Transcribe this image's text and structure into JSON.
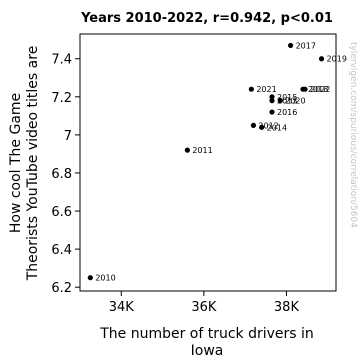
{
  "chart_data": {
    "type": "scatter",
    "title": "Years 2010-2022, r=0.942, p<0.01",
    "xlabel": "The number of truck drivers in Iowa",
    "ylabel": "How cool The Game Theorists YouTube video titles are",
    "xlim": [
      33000,
      39200
    ],
    "ylim": [
      6.18,
      7.53
    ],
    "xticks": [
      {
        "value": 34000,
        "label": "34K"
      },
      {
        "value": 36000,
        "label": "36K"
      },
      {
        "value": 38000,
        "label": "38K"
      }
    ],
    "yticks": [
      6.2,
      6.4,
      6.6,
      6.8,
      7.0,
      7.2,
      7.4
    ],
    "ytick_labels": [
      "6.2",
      "6.4",
      "6.6",
      "6.8",
      "7",
      "7.2",
      "7.4"
    ],
    "grid": false,
    "watermark": "tylervigen.com/spurious/correlation/5604",
    "points": [
      {
        "x": 33250,
        "y": 6.25,
        "label": "2010"
      },
      {
        "x": 35600,
        "y": 6.92,
        "label": "2011"
      },
      {
        "x": 37200,
        "y": 7.05,
        "label": "2012"
      },
      {
        "x": 37650,
        "y": 7.18,
        "label": "2013"
      },
      {
        "x": 37400,
        "y": 7.04,
        "label": "2014"
      },
      {
        "x": 37650,
        "y": 7.2,
        "label": "2015"
      },
      {
        "x": 37650,
        "y": 7.12,
        "label": "2016"
      },
      {
        "x": 38100,
        "y": 7.47,
        "label": "2017"
      },
      {
        "x": 38400,
        "y": 7.24,
        "label": "2018"
      },
      {
        "x": 38850,
        "y": 7.4,
        "label": "2019"
      },
      {
        "x": 37850,
        "y": 7.18,
        "label": "2020"
      },
      {
        "x": 37150,
        "y": 7.24,
        "label": "2021"
      },
      {
        "x": 38450,
        "y": 7.24,
        "label": "2022"
      }
    ]
  }
}
